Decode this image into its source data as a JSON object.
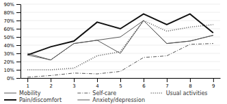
{
  "chart_data": {
    "type": "line",
    "x": [
      1,
      2,
      3,
      4,
      5,
      6,
      7,
      8,
      9
    ],
    "series": [
      {
        "name": "Mobility",
        "color": "#555555",
        "line_style": "solid",
        "values": [
          30,
          22,
          42,
          46,
          30,
          70,
          42,
          45,
          52
        ]
      },
      {
        "name": "Self-care",
        "color": "#555555",
        "line_style": "dashdot",
        "values": [
          1,
          3,
          6,
          5,
          8,
          25,
          27,
          41,
          42
        ]
      },
      {
        "name": "Usual activities",
        "color": "#555555",
        "line_style": "dotted",
        "values": [
          10,
          10,
          12,
          27,
          32,
          70,
          57,
          62,
          65
        ]
      },
      {
        "name": "Pain/discomfort",
        "color": "#111111",
        "line_style": "solid",
        "values": [
          28,
          38,
          45,
          68,
          60,
          78,
          65,
          78,
          55
        ]
      },
      {
        "name": "Anxiety/depression",
        "color": "#555555",
        "line_style": "solid",
        "values": [
          28,
          22,
          42,
          46,
          50,
          70,
          42,
          45,
          52
        ]
      }
    ],
    "xlim": [
      0.7,
      9.3
    ],
    "xticks": [
      1,
      2,
      3,
      4,
      5,
      6,
      7,
      8,
      9
    ],
    "ylim": [
      0,
      90
    ],
    "yticks": [
      {
        "value": 0,
        "label": "0%"
      },
      {
        "value": 10,
        "label": "10%"
      },
      {
        "value": 20,
        "label": "20%"
      },
      {
        "value": 30,
        "label": "30%"
      },
      {
        "value": 40,
        "label": "40%"
      },
      {
        "value": 50,
        "label": "50%"
      },
      {
        "value": 60,
        "label": "60%"
      },
      {
        "value": 70,
        "label": "70%"
      },
      {
        "value": 80,
        "label": "80%"
      },
      {
        "value": 90,
        "label": "90%"
      }
    ],
    "grid": true,
    "legend": "bottom"
  }
}
